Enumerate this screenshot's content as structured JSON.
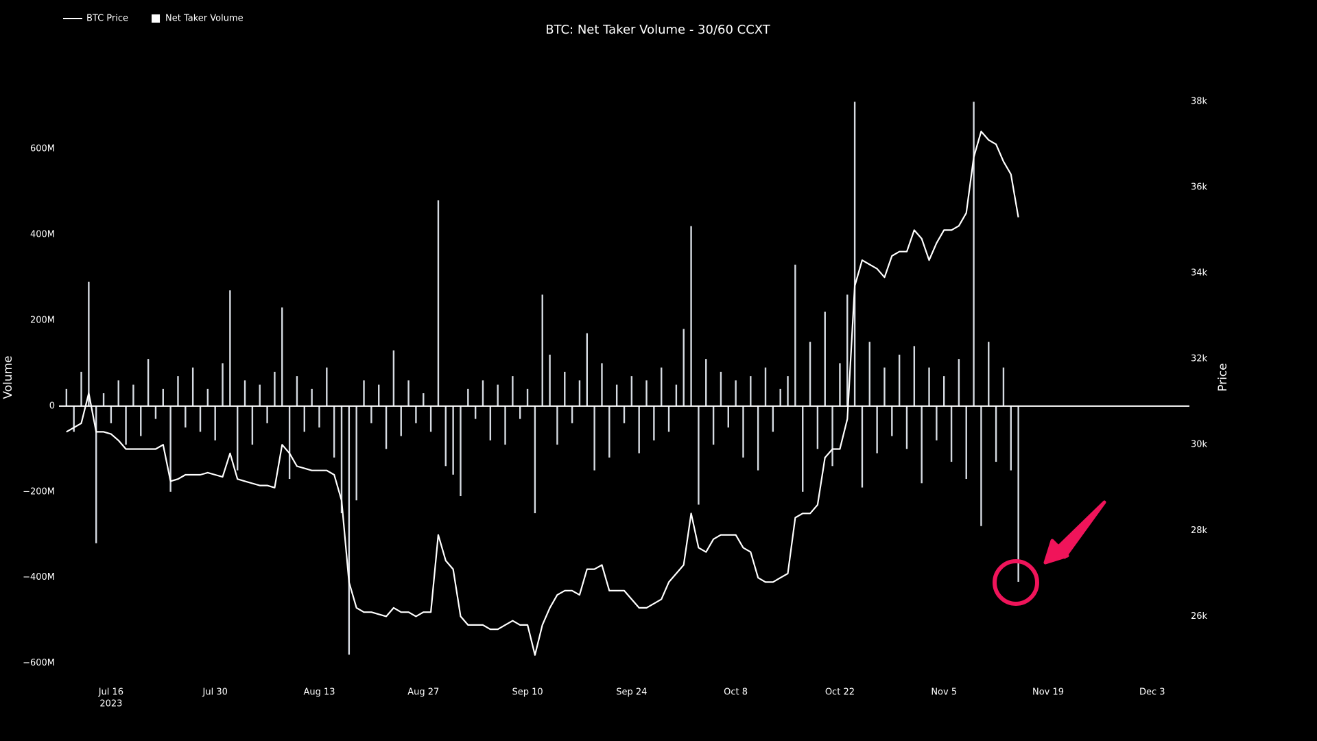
{
  "chart_data": {
    "type": "line-bar",
    "title": "BTC: Net Taker Volume - 30/60 CCXT",
    "y_label": "Volume",
    "y2_label": "Price",
    "x_year_label": "2023",
    "x": [
      "2023-07-10",
      "2023-07-11",
      "2023-07-12",
      "2023-07-13",
      "2023-07-14",
      "2023-07-15",
      "2023-07-16",
      "2023-07-17",
      "2023-07-18",
      "2023-07-19",
      "2023-07-20",
      "2023-07-21",
      "2023-07-22",
      "2023-07-23",
      "2023-07-24",
      "2023-07-25",
      "2023-07-26",
      "2023-07-27",
      "2023-07-28",
      "2023-07-29",
      "2023-07-30",
      "2023-07-31",
      "2023-08-01",
      "2023-08-02",
      "2023-08-03",
      "2023-08-04",
      "2023-08-05",
      "2023-08-06",
      "2023-08-07",
      "2023-08-08",
      "2023-08-09",
      "2023-08-10",
      "2023-08-11",
      "2023-08-12",
      "2023-08-13",
      "2023-08-14",
      "2023-08-15",
      "2023-08-16",
      "2023-08-17",
      "2023-08-18",
      "2023-08-19",
      "2023-08-20",
      "2023-08-21",
      "2023-08-22",
      "2023-08-23",
      "2023-08-24",
      "2023-08-25",
      "2023-08-26",
      "2023-08-27",
      "2023-08-28",
      "2023-08-29",
      "2023-08-30",
      "2023-08-31",
      "2023-09-01",
      "2023-09-02",
      "2023-09-03",
      "2023-09-04",
      "2023-09-05",
      "2023-09-06",
      "2023-09-07",
      "2023-09-08",
      "2023-09-09",
      "2023-09-10",
      "2023-09-11",
      "2023-09-12",
      "2023-09-13",
      "2023-09-14",
      "2023-09-15",
      "2023-09-16",
      "2023-09-17",
      "2023-09-18",
      "2023-09-19",
      "2023-09-20",
      "2023-09-21",
      "2023-09-22",
      "2023-09-23",
      "2023-09-24",
      "2023-09-25",
      "2023-09-26",
      "2023-09-27",
      "2023-09-28",
      "2023-09-29",
      "2023-09-30",
      "2023-10-01",
      "2023-10-02",
      "2023-10-03",
      "2023-10-04",
      "2023-10-05",
      "2023-10-06",
      "2023-10-07",
      "2023-10-08",
      "2023-10-09",
      "2023-10-10",
      "2023-10-11",
      "2023-10-12",
      "2023-10-13",
      "2023-10-14",
      "2023-10-15",
      "2023-10-16",
      "2023-10-17",
      "2023-10-18",
      "2023-10-19",
      "2023-10-20",
      "2023-10-21",
      "2023-10-22",
      "2023-10-23",
      "2023-10-24",
      "2023-10-25",
      "2023-10-26",
      "2023-10-27",
      "2023-10-28",
      "2023-10-29",
      "2023-10-30",
      "2023-10-31",
      "2023-11-01",
      "2023-11-02",
      "2023-11-03",
      "2023-11-04",
      "2023-11-05",
      "2023-11-06",
      "2023-11-07",
      "2023-11-08",
      "2023-11-09",
      "2023-11-10",
      "2023-11-11",
      "2023-11-12",
      "2023-11-13",
      "2023-11-14",
      "2023-11-15"
    ],
    "series": [
      {
        "name": "BTC Price",
        "type": "line",
        "axis": "y2",
        "color": "#ffffff",
        "values": [
          30300,
          30400,
          30500,
          31200,
          30300,
          30300,
          30250,
          30100,
          29900,
          29900,
          29900,
          29900,
          29900,
          30000,
          29150,
          29200,
          29300,
          29300,
          29300,
          29350,
          29300,
          29250,
          29800,
          29200,
          29150,
          29100,
          29050,
          29050,
          29000,
          30000,
          29800,
          29500,
          29450,
          29400,
          29400,
          29400,
          29300,
          28700,
          26800,
          26200,
          26100,
          26100,
          26050,
          26000,
          26200,
          26100,
          26100,
          26000,
          26100,
          26100,
          27900,
          27300,
          27100,
          26000,
          25800,
          25800,
          25800,
          25700,
          25700,
          25800,
          25900,
          25800,
          25800,
          25100,
          25800,
          26200,
          26500,
          26600,
          26600,
          26500,
          27100,
          27100,
          27200,
          26600,
          26600,
          26600,
          26400,
          26200,
          26200,
          26300,
          26400,
          26800,
          27000,
          27200,
          28400,
          27600,
          27500,
          27800,
          27900,
          27900,
          27900,
          27600,
          27500,
          26900,
          26800,
          26800,
          26900,
          27000,
          28300,
          28400,
          28400,
          28600,
          29700,
          29900,
          29900,
          30600,
          33700,
          34300,
          34200,
          34100,
          33900,
          34400,
          34500,
          34500,
          35000,
          34800,
          34300,
          34700,
          35000,
          35000,
          35100,
          35400,
          36700,
          37300,
          37100,
          37000,
          36600,
          36300,
          35300
        ]
      },
      {
        "name": "Net Taker Volume",
        "type": "bar",
        "axis": "y",
        "color": "#d6dbe2",
        "values": [
          40000000,
          -60000000,
          80000000,
          290000000,
          -320000000,
          30000000,
          -40000000,
          60000000,
          -90000000,
          50000000,
          -70000000,
          110000000,
          -30000000,
          40000000,
          -200000000,
          70000000,
          -50000000,
          90000000,
          -60000000,
          40000000,
          -80000000,
          100000000,
          270000000,
          -150000000,
          60000000,
          -90000000,
          50000000,
          -40000000,
          80000000,
          230000000,
          -170000000,
          70000000,
          -60000000,
          40000000,
          -50000000,
          90000000,
          -120000000,
          -250000000,
          -580000000,
          -220000000,
          60000000,
          -40000000,
          50000000,
          -100000000,
          130000000,
          -70000000,
          60000000,
          -40000000,
          30000000,
          -60000000,
          480000000,
          -140000000,
          -160000000,
          -210000000,
          40000000,
          -30000000,
          60000000,
          -80000000,
          50000000,
          -90000000,
          70000000,
          -30000000,
          40000000,
          -250000000,
          260000000,
          120000000,
          -90000000,
          80000000,
          -40000000,
          60000000,
          170000000,
          -150000000,
          100000000,
          -120000000,
          50000000,
          -40000000,
          70000000,
          -110000000,
          60000000,
          -80000000,
          90000000,
          -60000000,
          50000000,
          180000000,
          420000000,
          -230000000,
          110000000,
          -90000000,
          80000000,
          -50000000,
          60000000,
          -120000000,
          70000000,
          -150000000,
          90000000,
          -60000000,
          40000000,
          70000000,
          330000000,
          -200000000,
          150000000,
          -100000000,
          220000000,
          -140000000,
          100000000,
          260000000,
          710000000,
          -190000000,
          150000000,
          -110000000,
          90000000,
          -70000000,
          120000000,
          -100000000,
          140000000,
          -180000000,
          90000000,
          -80000000,
          70000000,
          -130000000,
          110000000,
          -170000000,
          710000000,
          -280000000,
          150000000,
          -130000000,
          90000000,
          -150000000,
          -410000000
        ]
      }
    ],
    "xlim": [
      "2023-07-09",
      "2023-12-08"
    ],
    "xticks": [
      {
        "value": "2023-07-16",
        "label": "Jul 16"
      },
      {
        "value": "2023-07-30",
        "label": "Jul 30"
      },
      {
        "value": "2023-08-13",
        "label": "Aug 13"
      },
      {
        "value": "2023-08-27",
        "label": "Aug 27"
      },
      {
        "value": "2023-09-10",
        "label": "Sep 10"
      },
      {
        "value": "2023-09-24",
        "label": "Sep 24"
      },
      {
        "value": "2023-10-08",
        "label": "Oct 8"
      },
      {
        "value": "2023-10-22",
        "label": "Oct 22"
      },
      {
        "value": "2023-11-05",
        "label": "Nov 5"
      },
      {
        "value": "2023-11-19",
        "label": "Nov 19"
      },
      {
        "value": "2023-12-03",
        "label": "Dec 3"
      }
    ],
    "ylim": [
      -631000000,
      741000000
    ],
    "yticks": [
      {
        "value": -600000000,
        "label": "−600M"
      },
      {
        "value": -400000000,
        "label": "−400M"
      },
      {
        "value": -200000000,
        "label": "−200M"
      },
      0,
      {
        "value": 200000000,
        "label": "200M"
      },
      {
        "value": 400000000,
        "label": "400M"
      },
      {
        "value": 600000000,
        "label": "600M"
      }
    ],
    "y2lim": [
      24600,
      38300
    ],
    "y2ticks": [
      {
        "value": 26000,
        "label": "26k"
      },
      {
        "value": 28000,
        "label": "28k"
      },
      {
        "value": 30000,
        "label": "30k"
      },
      {
        "value": 32000,
        "label": "32k"
      },
      {
        "value": 34000,
        "label": "34k"
      },
      {
        "value": 36000,
        "label": "36k"
      },
      {
        "value": 38000,
        "label": "38k"
      }
    ],
    "grid": false,
    "zeroline": true,
    "legend": "top-left"
  }
}
